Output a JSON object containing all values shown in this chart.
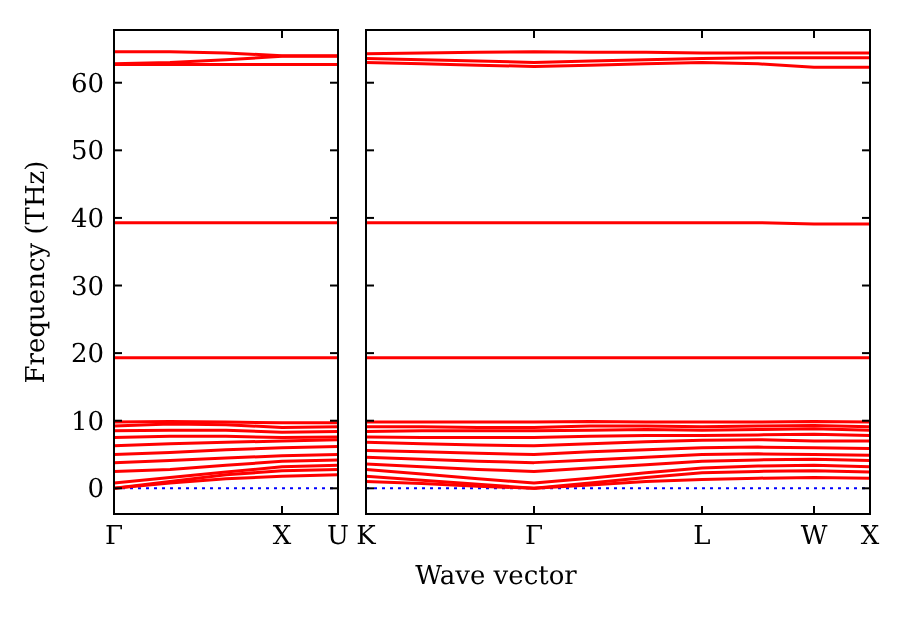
{
  "chart_data": [
    {
      "type": "line",
      "ylabel": "Frequency (THz)",
      "categories": [
        "Γ",
        null,
        null,
        "X",
        "U"
      ],
      "ylim": [
        -3.8,
        67.8
      ],
      "yticks": [
        0,
        10,
        20,
        30,
        40,
        50,
        60
      ],
      "grid": false,
      "line_style": "solid",
      "marker": "none",
      "ref_lines": [
        {
          "axis": "y",
          "value": 0,
          "color": "#0000ff",
          "line_style": "dotted"
        }
      ],
      "series": [
        {
          "color": "#ff0000",
          "values": [
            0,
            0.8,
            1.4,
            1.8,
            2.0
          ]
        },
        {
          "color": "#ff0000",
          "values": [
            0,
            1.0,
            2.0,
            2.6,
            2.8
          ]
        },
        {
          "color": "#ff0000",
          "values": [
            0.8,
            1.6,
            2.4,
            3.2,
            3.4
          ]
        },
        {
          "color": "#ff0000",
          "values": [
            2.5,
            2.8,
            3.4,
            4.0,
            4.2
          ]
        },
        {
          "color": "#ff0000",
          "values": [
            3.8,
            4.1,
            4.5,
            4.8,
            5.0
          ]
        },
        {
          "color": "#ff0000",
          "values": [
            5.0,
            5.3,
            5.7,
            6.0,
            6.2
          ]
        },
        {
          "color": "#ff0000",
          "values": [
            6.3,
            6.6,
            6.8,
            7.0,
            7.2
          ]
        },
        {
          "color": "#ff0000",
          "values": [
            7.5,
            7.7,
            7.7,
            7.5,
            7.6
          ]
        },
        {
          "color": "#ff0000",
          "values": [
            8.5,
            8.6,
            8.6,
            8.3,
            8.4
          ]
        },
        {
          "color": "#ff0000",
          "values": [
            9.2,
            9.5,
            9.4,
            9.0,
            9.1
          ]
        },
        {
          "color": "#ff0000",
          "values": [
            9.8,
            9.9,
            9.8,
            9.7,
            9.7
          ]
        },
        {
          "color": "#ff0000",
          "values": [
            19.3,
            19.3,
            19.3,
            19.3,
            19.3
          ]
        },
        {
          "color": "#ff0000",
          "values": [
            39.3,
            39.3,
            39.3,
            39.3,
            39.3
          ]
        },
        {
          "color": "#ff0000",
          "values": [
            62.7,
            62.7,
            62.7,
            62.7,
            62.7
          ]
        },
        {
          "color": "#ff0000",
          "values": [
            62.8,
            63.0,
            63.4,
            63.9,
            63.9
          ]
        },
        {
          "color": "#ff0000",
          "values": [
            64.6,
            64.6,
            64.4,
            64.0,
            64.0
          ]
        }
      ]
    },
    {
      "type": "line",
      "xlabel": "Wave vector",
      "categories": [
        "K",
        null,
        null,
        "Γ",
        null,
        null,
        "L",
        null,
        "W",
        "X"
      ],
      "ylim": [
        -3.8,
        67.8
      ],
      "yticks": [
        0,
        10,
        20,
        30,
        40,
        50,
        60
      ],
      "tick_labels": "x",
      "grid": false,
      "line_style": "solid",
      "marker": "none",
      "ref_lines": [
        {
          "axis": "y",
          "value": 0,
          "color": "#0000ff",
          "line_style": "dotted"
        }
      ],
      "series": [
        {
          "color": "#ff0000",
          "values": [
            1.0,
            0.7,
            0.3,
            0,
            0.5,
            1.0,
            1.3,
            1.5,
            1.6,
            1.5
          ]
        },
        {
          "color": "#ff0000",
          "values": [
            1.8,
            1.2,
            0.6,
            0,
            0.8,
            1.6,
            2.3,
            2.5,
            2.6,
            2.4
          ]
        },
        {
          "color": "#ff0000",
          "values": [
            2.8,
            2.1,
            1.4,
            0.8,
            1.5,
            2.3,
            3.0,
            3.3,
            3.4,
            3.2
          ]
        },
        {
          "color": "#ff0000",
          "values": [
            3.6,
            3.2,
            2.8,
            2.5,
            3.0,
            3.5,
            4.0,
            4.2,
            4.3,
            4.1
          ]
        },
        {
          "color": "#ff0000",
          "values": [
            4.6,
            4.3,
            4.0,
            3.8,
            4.2,
            4.6,
            5.0,
            5.1,
            5.0,
            4.9
          ]
        },
        {
          "color": "#ff0000",
          "values": [
            5.6,
            5.4,
            5.2,
            5.0,
            5.4,
            5.7,
            6.0,
            6.1,
            6.0,
            5.9
          ]
        },
        {
          "color": "#ff0000",
          "values": [
            6.8,
            6.6,
            6.4,
            6.3,
            6.6,
            6.9,
            7.1,
            7.2,
            7.0,
            7.0
          ]
        },
        {
          "color": "#ff0000",
          "values": [
            7.6,
            7.5,
            7.5,
            7.5,
            7.7,
            7.8,
            7.8,
            7.9,
            8.0,
            7.8
          ]
        },
        {
          "color": "#ff0000",
          "values": [
            8.4,
            8.5,
            8.5,
            8.5,
            8.6,
            8.7,
            8.6,
            8.7,
            8.8,
            8.6
          ]
        },
        {
          "color": "#ff0000",
          "values": [
            9.1,
            9.1,
            9.0,
            9.0,
            9.2,
            9.2,
            9.1,
            9.2,
            9.3,
            9.1
          ]
        },
        {
          "color": "#ff0000",
          "values": [
            9.8,
            9.8,
            9.8,
            9.8,
            9.9,
            9.8,
            9.8,
            9.8,
            9.9,
            9.8
          ]
        },
        {
          "color": "#ff0000",
          "values": [
            19.3,
            19.3,
            19.3,
            19.3,
            19.3,
            19.3,
            19.3,
            19.3,
            19.3,
            19.3
          ]
        },
        {
          "color": "#ff0000",
          "values": [
            39.3,
            39.3,
            39.3,
            39.3,
            39.3,
            39.3,
            39.3,
            39.3,
            39.1,
            39.1
          ]
        },
        {
          "color": "#ff0000",
          "values": [
            63.0,
            62.8,
            62.6,
            62.4,
            62.6,
            62.8,
            63.0,
            62.8,
            62.3,
            62.3
          ]
        },
        {
          "color": "#ff0000",
          "values": [
            63.6,
            63.4,
            63.2,
            63.0,
            63.2,
            63.4,
            63.6,
            63.7,
            63.7,
            63.7
          ]
        },
        {
          "color": "#ff0000",
          "values": [
            64.3,
            64.4,
            64.5,
            64.6,
            64.5,
            64.5,
            64.4,
            64.4,
            64.4,
            64.4
          ]
        }
      ]
    }
  ]
}
